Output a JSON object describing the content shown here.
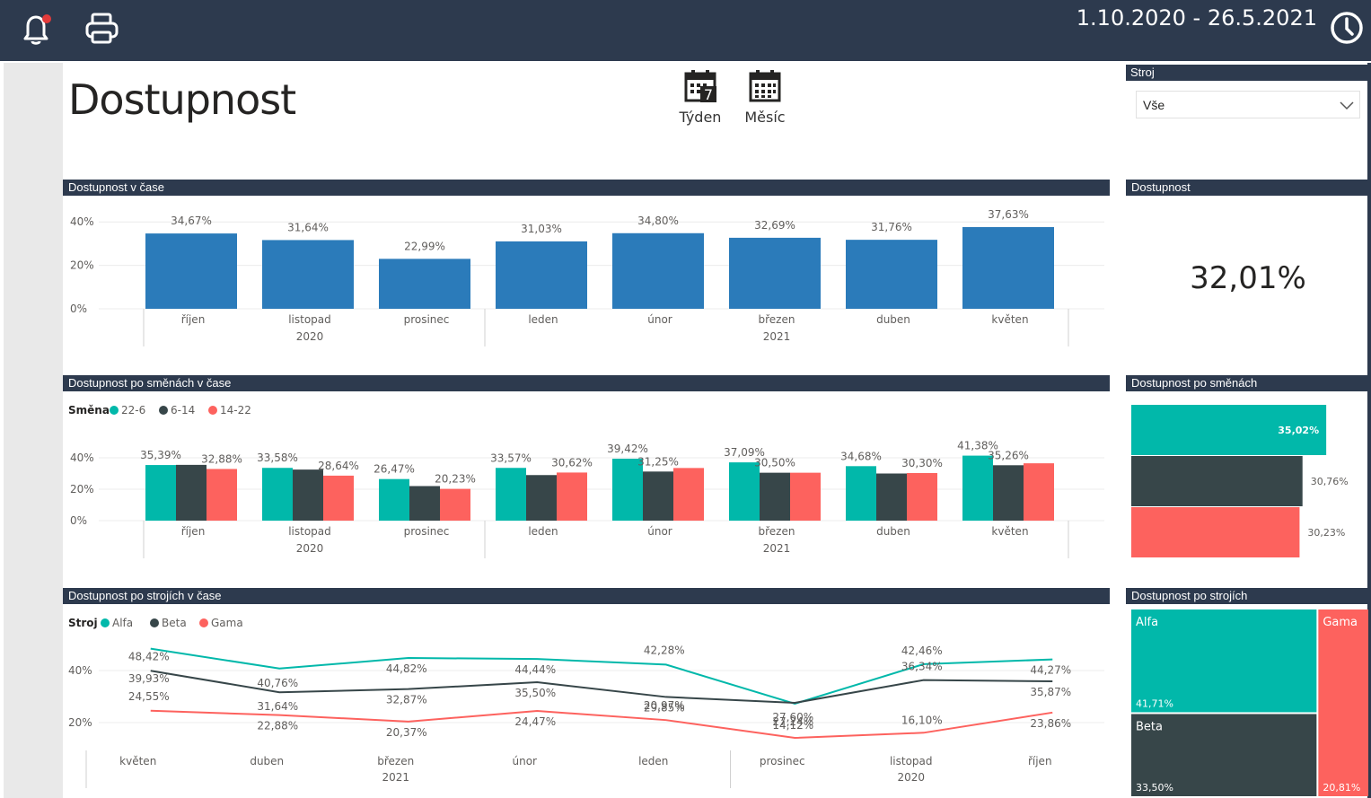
{
  "header": {
    "date_range": "1.10.2020 - 26.5.2021",
    "icons": [
      "bell-icon",
      "printer-icon",
      "clock-icon"
    ],
    "bg_color": "#2d3a4e"
  },
  "page_title": "Dostupnost",
  "period_buttons": [
    {
      "label": "Týden",
      "icon": "calendar-week-icon",
      "icon_text": "7"
    },
    {
      "label": "Měsíc",
      "icon": "calendar-month-icon"
    }
  ],
  "filter": {
    "title": "Stroj",
    "value": "Vše"
  },
  "colors": {
    "blue": "#2b7bba",
    "teal": "#01b8aa",
    "dark": "#374649",
    "red": "#fd625e",
    "header": "#2d3a4e"
  },
  "panels": {
    "availability_over_time": "Dostupnost v čase",
    "availability_kpi": "Dostupnost",
    "shifts_over_time": "Dostupnost po směnách v čase",
    "shifts_total": "Dostupnost po směnách",
    "machines_over_time": "Dostupnost po strojích v čase",
    "machines_total": "Dostupnost po strojích"
  },
  "kpi_value": "32,01%",
  "chart_data": [
    {
      "id": "availability_over_time",
      "type": "bar",
      "categories": [
        "říjen",
        "listopad",
        "prosinec",
        "leden",
        "únor",
        "březen",
        "duben",
        "květen"
      ],
      "years": [
        {
          "label": "2020",
          "span": 3
        },
        {
          "label": "2021",
          "span": 5
        }
      ],
      "values": [
        34.67,
        31.64,
        22.99,
        31.03,
        34.8,
        32.69,
        31.76,
        37.63
      ],
      "labels": [
        "34,67%",
        "31,64%",
        "22,99%",
        "31,03%",
        "34,80%",
        "32,69%",
        "31,76%",
        "37,63%"
      ],
      "yticks": [
        "0%",
        "20%",
        "40%"
      ],
      "ylim": [
        0,
        45
      ]
    },
    {
      "id": "shifts_over_time",
      "type": "bar",
      "legend_title": "Směna",
      "categories": [
        "říjen",
        "listopad",
        "prosinec",
        "leden",
        "únor",
        "březen",
        "duben",
        "květen"
      ],
      "years": [
        {
          "label": "2020",
          "span": 3
        },
        {
          "label": "2021",
          "span": 5
        }
      ],
      "series": [
        {
          "name": "22-6",
          "color": "#01b8aa",
          "values": [
            35.39,
            33.58,
            26.47,
            33.57,
            39.42,
            37.09,
            34.68,
            41.38
          ]
        },
        {
          "name": "6-14",
          "color": "#374649",
          "values": [
            35.5,
            32.5,
            22.0,
            29.0,
            31.25,
            30.5,
            30.0,
            35.26
          ]
        },
        {
          "name": "14-22",
          "color": "#fd625e",
          "values": [
            32.88,
            28.64,
            20.23,
            30.62,
            33.5,
            30.5,
            30.3,
            36.5
          ]
        }
      ],
      "labels": [
        {
          "cat": 0,
          "series": 0,
          "text": "35,39%"
        },
        {
          "cat": 0,
          "series": 2,
          "text": "32,88%"
        },
        {
          "cat": 1,
          "series": 0,
          "text": "33,58%"
        },
        {
          "cat": 1,
          "series": 2,
          "text": "28,64%"
        },
        {
          "cat": 2,
          "series": 0,
          "text": "26,47%"
        },
        {
          "cat": 2,
          "series": 2,
          "text": "20,23%"
        },
        {
          "cat": 3,
          "series": 0,
          "text": "33,57%"
        },
        {
          "cat": 3,
          "series": 2,
          "text": "30,62%"
        },
        {
          "cat": 4,
          "series": 0,
          "text": "39,42%"
        },
        {
          "cat": 4,
          "series": 1,
          "text": "31,25%"
        },
        {
          "cat": 5,
          "series": 0,
          "text": "37,09%"
        },
        {
          "cat": 5,
          "series": 1,
          "text": "30,50%"
        },
        {
          "cat": 6,
          "series": 0,
          "text": "34,68%"
        },
        {
          "cat": 6,
          "series": 2,
          "text": "30,30%"
        },
        {
          "cat": 7,
          "series": 0,
          "text": "41,38%"
        },
        {
          "cat": 7,
          "series": 1,
          "text": "35,26%"
        }
      ],
      "yticks": [
        "0%",
        "20%",
        "40%"
      ],
      "ylim": [
        0,
        45
      ]
    },
    {
      "id": "shifts_total",
      "type": "bar",
      "orientation": "horizontal",
      "series": [
        {
          "name": "22-6",
          "color": "#01b8aa",
          "value": 35.02,
          "label": "35,02%"
        },
        {
          "name": "6-14",
          "color": "#374649",
          "value": 30.76,
          "label": "30,76%"
        },
        {
          "name": "14-22",
          "color": "#fd625e",
          "value": 30.23,
          "label": "30,23%"
        }
      ]
    },
    {
      "id": "machines_over_time",
      "type": "line",
      "legend_title": "Stroj",
      "categories": [
        "květen",
        "duben",
        "březen",
        "únor",
        "leden",
        "prosinec",
        "listopad",
        "říjen"
      ],
      "years": [
        {
          "label": "2021",
          "span": 5
        },
        {
          "label": "2020",
          "span": 3
        }
      ],
      "series": [
        {
          "name": "Alfa",
          "color": "#01b8aa",
          "values": [
            48.42,
            40.76,
            44.82,
            44.44,
            42.28,
            27.24,
            42.46,
            44.27
          ],
          "labels": [
            "48,42%",
            "40,76%",
            "44,82%",
            "44,44%",
            "42,28%",
            "27,24%",
            "42,46%",
            "44,27%"
          ]
        },
        {
          "name": "Beta",
          "color": "#374649",
          "values": [
            39.93,
            31.64,
            32.87,
            35.5,
            29.85,
            27.6,
            36.34,
            35.87
          ],
          "labels": [
            "39,93%",
            "31,64%",
            "32,87%",
            "35,50%",
            "29,85%",
            "27,60%",
            "36,34%",
            "35,87%"
          ]
        },
        {
          "name": "Gama",
          "color": "#fd625e",
          "values": [
            24.55,
            22.88,
            20.37,
            24.47,
            20.97,
            14.12,
            16.1,
            23.86
          ],
          "labels": [
            "24,55%",
            "22,88%",
            "20,37%",
            "24,47%",
            "20,97%",
            "14,12%",
            "16,10%",
            "23,86%"
          ]
        }
      ],
      "yticks": [
        "20%",
        "40%"
      ]
    },
    {
      "id": "machines_total",
      "type": "treemap",
      "items": [
        {
          "name": "Alfa",
          "value": 41.71,
          "label": "41,71%",
          "color": "#01b8aa"
        },
        {
          "name": "Beta",
          "value": 33.5,
          "label": "33,50%",
          "color": "#374649"
        },
        {
          "name": "Gama",
          "value": 20.81,
          "label": "20,81%",
          "color": "#fd625e"
        }
      ]
    }
  ]
}
